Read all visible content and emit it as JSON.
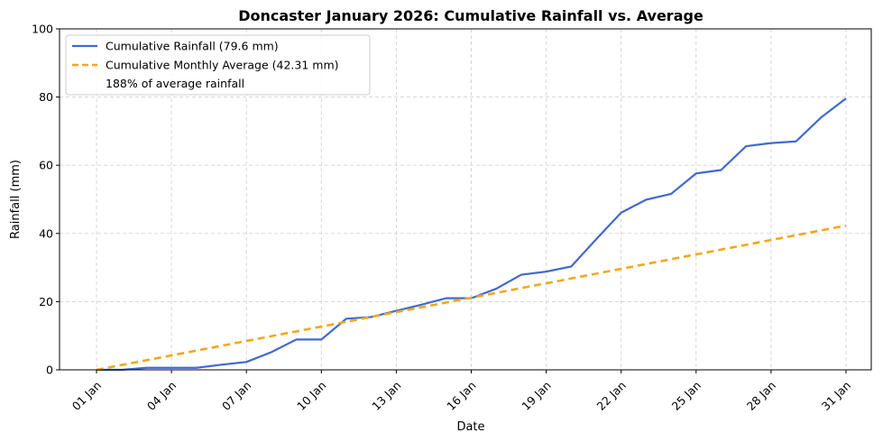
{
  "chart_data": {
    "type": "line",
    "title": "Doncaster January 2026: Cumulative Rainfall vs. Average",
    "xlabel": "Date",
    "ylabel": "Rainfall (mm)",
    "ylim": [
      0,
      100
    ],
    "yticks": [
      0,
      20,
      40,
      60,
      80,
      100
    ],
    "xlim": [
      0,
      31
    ],
    "xticks": [
      {
        "day": 1,
        "label": "01 Jan"
      },
      {
        "day": 4,
        "label": "04 Jan"
      },
      {
        "day": 7,
        "label": "07 Jan"
      },
      {
        "day": 10,
        "label": "10 Jan"
      },
      {
        "day": 13,
        "label": "13 Jan"
      },
      {
        "day": 16,
        "label": "16 Jan"
      },
      {
        "day": 19,
        "label": "19 Jan"
      },
      {
        "day": 22,
        "label": "22 Jan"
      },
      {
        "day": 25,
        "label": "25 Jan"
      },
      {
        "day": 28,
        "label": "28 Jan"
      },
      {
        "day": 31,
        "label": "31 Jan"
      }
    ],
    "grid": true,
    "legend_position": "top-left",
    "legend_note": "188% of average rainfall",
    "series": [
      {
        "name": "Cumulative Rainfall (79.6 mm)",
        "color": "#4169cf",
        "style": "solid",
        "x": [
          1,
          2,
          3,
          4,
          5,
          6,
          7,
          8,
          9,
          10,
          11,
          12,
          13,
          14,
          15,
          16,
          17,
          18,
          19,
          20,
          21,
          22,
          23,
          24,
          25,
          26,
          27,
          28,
          29,
          30,
          31
        ],
        "values": [
          0,
          0,
          0.6,
          0.6,
          0.6,
          1.5,
          2.3,
          5.2,
          8.9,
          8.9,
          15.0,
          15.5,
          17.3,
          19.1,
          21.0,
          21.0,
          23.8,
          27.9,
          28.8,
          30.3,
          38.3,
          46.1,
          49.9,
          51.6,
          57.6,
          58.6,
          65.6,
          66.5,
          67.0,
          74.0,
          79.6
        ]
      },
      {
        "name": "Cumulative Monthly Average (42.31 mm)",
        "color": "#f2a818",
        "style": "dashed",
        "x": [
          1,
          31
        ],
        "values": [
          0,
          42.31
        ]
      }
    ]
  }
}
